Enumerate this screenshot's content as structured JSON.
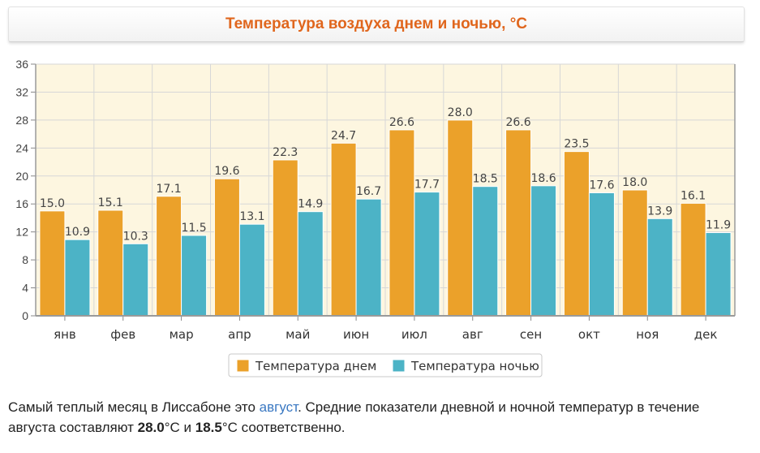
{
  "chart_data": {
    "type": "bar",
    "title": "Температура воздуха днем и ночью, °C",
    "categories": [
      "янв",
      "фев",
      "мар",
      "апр",
      "май",
      "июн",
      "июл",
      "авг",
      "сен",
      "окт",
      "ноя",
      "дек"
    ],
    "series": [
      {
        "name": "Температура днем",
        "color": "#eba12a",
        "values": [
          15.0,
          15.1,
          17.1,
          19.6,
          22.3,
          24.7,
          26.6,
          28.0,
          26.6,
          23.5,
          18.0,
          16.1
        ],
        "labels": [
          "15.0",
          "15.1",
          "17.1",
          "19.6",
          "22.3",
          "24.7",
          "26.6",
          "28.0",
          "26.6",
          "23.5",
          "18.0",
          "16.1"
        ]
      },
      {
        "name": "Температура ночью",
        "color": "#4cb3c6",
        "values": [
          10.9,
          10.3,
          11.5,
          13.1,
          14.9,
          16.7,
          17.7,
          18.5,
          18.6,
          17.6,
          13.9,
          11.9
        ],
        "labels": [
          "10.9",
          "10.3",
          "11.5",
          "13.1",
          "14.9",
          "16.7",
          "17.7",
          "18.5",
          "18.6",
          "17.6",
          "13.9",
          "11.9"
        ]
      }
    ],
    "ylim": [
      0,
      36
    ],
    "yticks": [
      "0",
      "4",
      "8",
      "12",
      "16",
      "20",
      "24",
      "28",
      "32",
      "36"
    ],
    "grid": true,
    "legend": "bottom-center"
  },
  "caption": {
    "part1": "Самый теплый месяц в Лиссабоне это ",
    "month_link": "август",
    "part2": ". Средние показатели дневной и ночной температур в течение августа составляют ",
    "day_value": "28.0",
    "part3": "°C и ",
    "night_value": "18.5",
    "part4": "°C соответственно."
  }
}
